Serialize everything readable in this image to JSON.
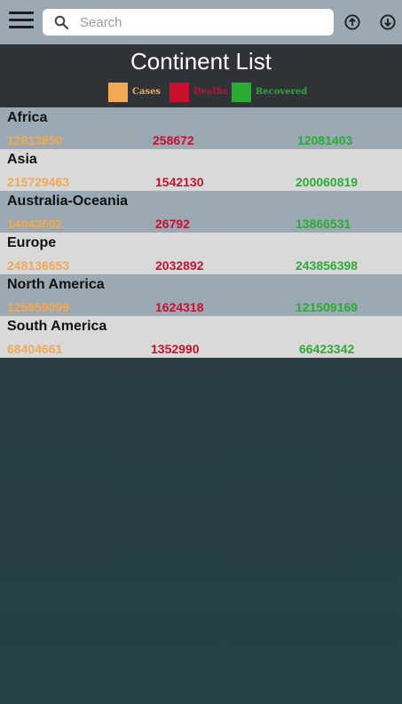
{
  "colors": {
    "cases": "#f2a953",
    "deaths": "#c8102e",
    "recovered": "#2bab34",
    "topbar": "#9aa9b3",
    "header": "#2f3337"
  },
  "search": {
    "placeholder": "Search",
    "icon": "search-icon"
  },
  "toolbar": {
    "menu_icon": "hamburger-menu-icon",
    "sort_up_icon": "arrow-up-circle-icon",
    "sort_down_icon": "arrow-down-circle-icon"
  },
  "header": {
    "title": "Continent List"
  },
  "legend": {
    "cases": "Cases",
    "deaths": "Deaths",
    "recovered": "Recovered"
  },
  "continents": [
    {
      "name": "Africa",
      "cases": "12813850",
      "deaths": "258672",
      "recovered": "12081403"
    },
    {
      "name": "Asia",
      "cases": "215729463",
      "deaths": "1542130",
      "recovered": "200060819"
    },
    {
      "name": "Australia-Oceania",
      "cases": "14043602",
      "deaths": "26792",
      "recovered": "13866531"
    },
    {
      "name": "Europe",
      "cases": "248136653",
      "deaths": "2032892",
      "recovered": "243856398"
    },
    {
      "name": "North America",
      "cases": "125859099",
      "deaths": "1624318",
      "recovered": "121509169"
    },
    {
      "name": "South America",
      "cases": "68404661",
      "deaths": "1352990",
      "recovered": "66423342"
    }
  ]
}
